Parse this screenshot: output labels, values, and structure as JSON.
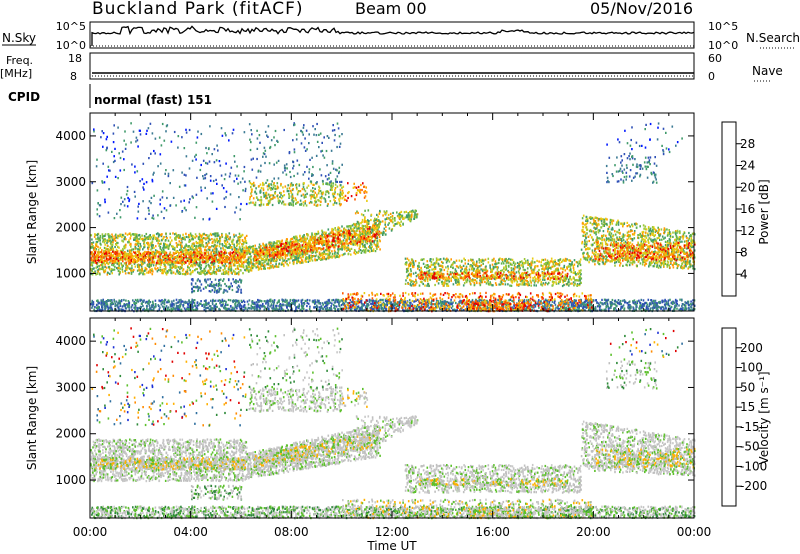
{
  "header": {
    "station": "Buckland Park (fitACF)",
    "beam": "Beam 00",
    "date": "05/Nov/2016"
  },
  "strips": {
    "nsky_label": "N.Sky",
    "nsky_top": "10^5",
    "nsky_bottom": "10^0",
    "nsearch_label": "N.Search",
    "nsearch_top": "10^5",
    "nsearch_bottom": "10^0",
    "freq_label": "Freq.",
    "freq_unit": "[MHz]",
    "freq_top": "18",
    "freq_bottom": "8",
    "nave_label": "Nave",
    "nave_top": "60",
    "nave_bottom": "0",
    "cpid_label": "CPID",
    "cpid_value": "normal (fast) 151"
  },
  "chart_data": [
    {
      "type": "heatmap",
      "title": "",
      "ylabel": "Slant Range [km]",
      "xlabel": "Time UT",
      "x_ticks": [
        "00:00",
        "04:00",
        "08:00",
        "12:00",
        "16:00",
        "20:00",
        "00:00"
      ],
      "xlim_hours": [
        0,
        24
      ],
      "y_ticks": [
        "1000",
        "2000",
        "3000",
        "4000"
      ],
      "ylim_km": [
        180,
        4500
      ],
      "colorbar": {
        "label": "Power [dB]",
        "ticks": [
          "4",
          "8",
          "12",
          "16",
          "20",
          "24",
          "28"
        ],
        "range": [
          0,
          30
        ],
        "colors": [
          "#0018ff",
          "#2d4fb6",
          "#3b7a93",
          "#3f9a6a",
          "#5fb14b",
          "#9cc837",
          "#e8cc12",
          "#ff9a00",
          "#ff5a00",
          "#e60000"
        ]
      }
    },
    {
      "type": "heatmap",
      "title": "",
      "ylabel": "Slant Range [km]",
      "xlabel": "Time UT",
      "x_ticks": [
        "00:00",
        "04:00",
        "08:00",
        "12:00",
        "16:00",
        "20:00",
        "00:00"
      ],
      "xlim_hours": [
        0,
        24
      ],
      "y_ticks": [
        "1000",
        "2000",
        "3000",
        "4000"
      ],
      "ylim_km": [
        180,
        4500
      ],
      "colorbar": {
        "label": "Velocity [m s⁻¹]",
        "ticks": [
          "200",
          "100",
          "50",
          "15",
          "-15",
          "-50",
          "-100",
          "-200"
        ],
        "range": [
          -250,
          250
        ],
        "colors": [
          "#1a2fd6",
          "#2f6f9f",
          "#2f8a3a",
          "#5cc02c",
          "#bfbfbf",
          "#c8c8c8",
          "#ffb000",
          "#ff8a00",
          "#ff5000",
          "#e00000"
        ]
      }
    }
  ]
}
